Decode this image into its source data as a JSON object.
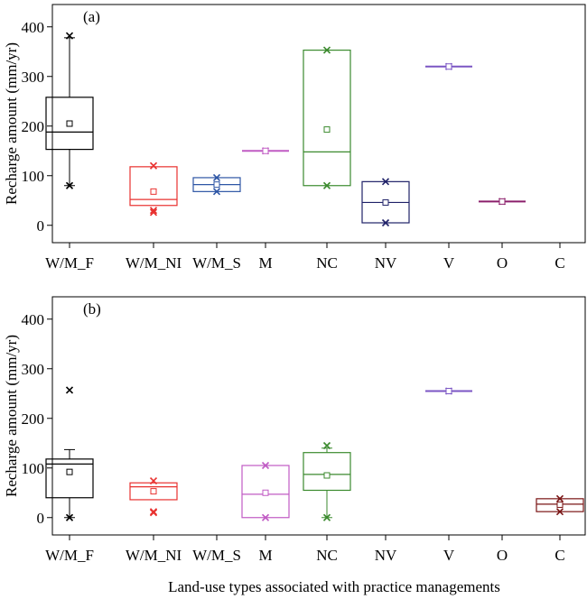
{
  "chart_data": [
    {
      "type": "box",
      "panel_label": "(a)",
      "ylabel": "Recharge amount (mm/yr)",
      "ylim": [
        -35,
        445
      ],
      "yticks": [
        0,
        100,
        200,
        300,
        400
      ],
      "categories": [
        "W/M_F",
        "W/M_NI",
        "W/M_S",
        "M",
        "NC",
        "NV",
        "V",
        "O",
        "C"
      ],
      "boxes": [
        {
          "category": "W/M_F",
          "color": "#000000",
          "q1": 153,
          "median": 188,
          "q3": 258,
          "mean": 205,
          "whisker_low": 80,
          "whisker_high": 378,
          "extremes": [
            382,
            80
          ]
        },
        {
          "category": "W/M_NI",
          "color": "#e8312f",
          "q1": 40,
          "median": 52,
          "q3": 118,
          "mean": 68,
          "whisker_low": null,
          "whisker_high": null,
          "extremes": [
            120,
            30,
            26
          ]
        },
        {
          "category": "W/M_S",
          "color": "#2d55a5",
          "q1": 68,
          "median": 82,
          "q3": 96,
          "mean": 82,
          "whisker_low": null,
          "whisker_high": null,
          "extremes": [
            96,
            68
          ]
        },
        {
          "category": "M",
          "color": "#c05bc4",
          "q1": 150,
          "median": 150,
          "q3": 150,
          "mean": 150,
          "whisker_low": null,
          "whisker_high": null,
          "extremes": [
            150
          ]
        },
        {
          "category": "NC",
          "color": "#3b8a2e",
          "q1": 80,
          "median": 148,
          "q3": 353,
          "mean": 193,
          "whisker_low": null,
          "whisker_high": null,
          "extremes": [
            353,
            80
          ]
        },
        {
          "category": "NV",
          "color": "#1f2168",
          "q1": 5,
          "median": 46,
          "q3": 88,
          "mean": 46,
          "whisker_low": null,
          "whisker_high": null,
          "extremes": [
            88,
            5
          ]
        },
        {
          "category": "V",
          "color": "#7b56c4",
          "q1": 320,
          "median": 320,
          "q3": 320,
          "mean": 320,
          "whisker_low": null,
          "whisker_high": null,
          "extremes": [
            320
          ]
        },
        {
          "category": "O",
          "color": "#8b1f6b",
          "q1": 48,
          "median": 48,
          "q3": 48,
          "mean": 48,
          "whisker_low": null,
          "whisker_high": null,
          "extremes": [
            48
          ]
        }
      ]
    },
    {
      "type": "box",
      "panel_label": "(b)",
      "ylabel": "Recharge amount (mm/yr)",
      "xlabel": "Land-use types associated with practice managements",
      "ylim": [
        -35,
        445
      ],
      "yticks": [
        0,
        100,
        200,
        300,
        400
      ],
      "categories": [
        "W/M_F",
        "W/M_NI",
        "W/M_S",
        "M",
        "NC",
        "NV",
        "V",
        "O",
        "C"
      ],
      "boxes": [
        {
          "category": "W/M_F",
          "color": "#000000",
          "q1": 40,
          "median": 108,
          "q3": 118,
          "mean": 92,
          "whisker_low": 0,
          "whisker_high": 137,
          "extremes": [
            257,
            0
          ]
        },
        {
          "category": "W/M_NI",
          "color": "#e8312f",
          "q1": 36,
          "median": 62,
          "q3": 70,
          "mean": 53,
          "whisker_low": null,
          "whisker_high": null,
          "extremes": [
            74,
            12,
            10
          ]
        },
        {
          "category": "M",
          "color": "#c05bc4",
          "q1": 0,
          "median": 47,
          "q3": 105,
          "mean": 50,
          "whisker_low": null,
          "whisker_high": null,
          "extremes": [
            105,
            0
          ]
        },
        {
          "category": "NC",
          "color": "#3b8a2e",
          "q1": 55,
          "median": 87,
          "q3": 131,
          "mean": 85,
          "whisker_low": 0,
          "whisker_high": 140,
          "extremes": [
            145,
            0
          ]
        },
        {
          "category": "V",
          "color": "#7b56c4",
          "q1": 255,
          "median": 255,
          "q3": 255,
          "mean": 255,
          "whisker_low": null,
          "whisker_high": null,
          "extremes": [
            255
          ]
        },
        {
          "category": "C",
          "color": "#7a1515",
          "q1": 12,
          "median": 27,
          "q3": 38,
          "mean": 26,
          "whisker_low": null,
          "whisker_high": null,
          "extremes": [
            38,
            12
          ]
        }
      ]
    }
  ]
}
